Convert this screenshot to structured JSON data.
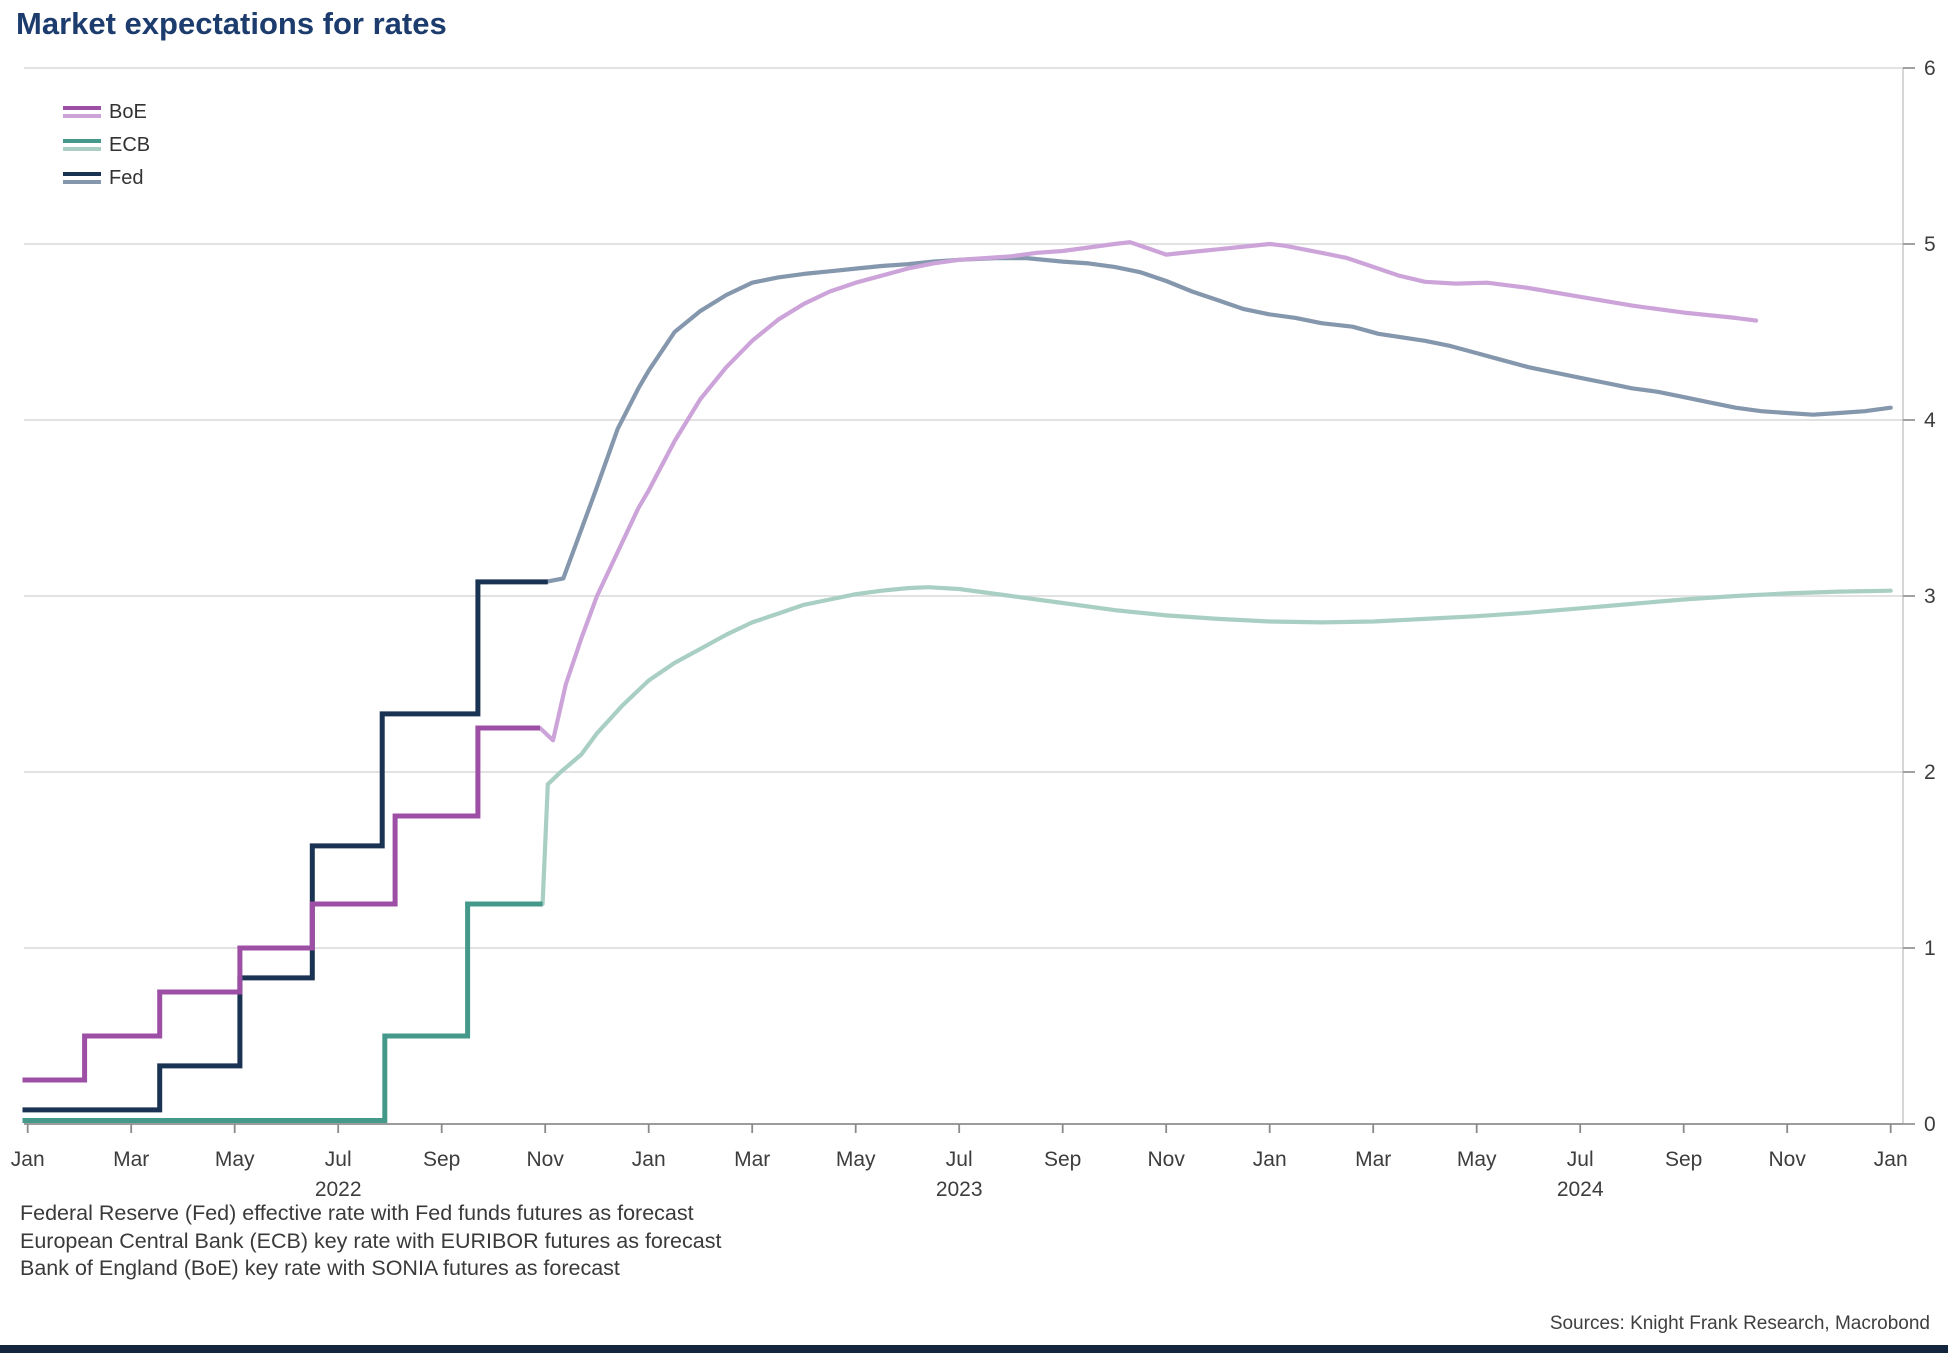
{
  "header": {
    "title": "Market expectations for rates"
  },
  "legend": {
    "items": [
      {
        "label": "BoE",
        "solid_color": "#9c4fa4",
        "forecast_color": "#cda4d9"
      },
      {
        "label": "ECB",
        "solid_color": "#45998a",
        "forecast_color": "#a9cfc4"
      },
      {
        "label": "Fed",
        "solid_color": "#1a3353",
        "forecast_color": "#8597ad"
      }
    ]
  },
  "footnotes": {
    "lines": [
      "Federal Reserve (Fed) effective rate with Fed funds futures as forecast",
      "European Central Bank (ECB) key rate with EURIBOR futures as forecast",
      "Bank of England (BoE) key rate with SONIA futures as forecast"
    ]
  },
  "sources": {
    "text": "Sources: Knight Frank Research, Macrobond"
  },
  "chart_data": {
    "type": "line",
    "title": "Market expectations for rates",
    "grid": true,
    "legend_position": "top-left",
    "x_axis": {
      "unit": "months since Jan 2022",
      "start_label": "Jan 2022",
      "end_label": "Jan 2025",
      "tick_months": [
        0,
        2,
        4,
        6,
        8,
        10,
        12,
        14,
        16,
        18,
        20,
        22,
        24,
        26,
        28,
        30,
        32,
        34,
        36
      ],
      "tick_labels": [
        "Jan",
        "Mar",
        "May",
        "Jul",
        "Sep",
        "Nov",
        "Jan",
        "Mar",
        "May",
        "Jul",
        "Sep",
        "Nov",
        "Jan",
        "Mar",
        "May",
        "Jul",
        "Sep",
        "Nov",
        "Jan"
      ],
      "year_labels": [
        {
          "month": 6,
          "label": "2022"
        },
        {
          "month": 18,
          "label": "2023"
        },
        {
          "month": 30,
          "label": "2024"
        }
      ]
    },
    "y_axis": {
      "min": 0,
      "max": 6,
      "ticks": [
        0,
        1,
        2,
        3,
        4,
        5,
        6
      ],
      "side": "right"
    },
    "series": [
      {
        "name": "ECB",
        "solid_color": "#45998a",
        "forecast_color": "#a9cfc4",
        "solid": [
          [
            -0.1,
            0.02
          ],
          [
            6.9,
            0.02
          ],
          [
            6.9,
            0.5
          ],
          [
            8.5,
            0.5
          ],
          [
            8.5,
            1.25
          ],
          [
            9.95,
            1.25
          ]
        ],
        "forecast": [
          [
            9.95,
            1.25
          ],
          [
            10.05,
            1.93
          ],
          [
            10.3,
            2.0
          ],
          [
            10.7,
            2.1
          ],
          [
            11,
            2.22
          ],
          [
            11.5,
            2.38
          ],
          [
            12,
            2.52
          ],
          [
            12.5,
            2.62
          ],
          [
            13,
            2.7
          ],
          [
            13.5,
            2.78
          ],
          [
            14,
            2.85
          ],
          [
            14.5,
            2.9
          ],
          [
            15,
            2.95
          ],
          [
            15.5,
            2.98
          ],
          [
            16,
            3.01
          ],
          [
            16.5,
            3.03
          ],
          [
            17,
            3.045
          ],
          [
            17.4,
            3.05
          ],
          [
            18,
            3.04
          ],
          [
            18.5,
            3.02
          ],
          [
            19,
            3.0
          ],
          [
            19.5,
            2.98
          ],
          [
            20,
            2.96
          ],
          [
            21,
            2.92
          ],
          [
            22,
            2.89
          ],
          [
            23,
            2.87
          ],
          [
            24,
            2.855
          ],
          [
            25,
            2.85
          ],
          [
            26,
            2.855
          ],
          [
            27,
            2.87
          ],
          [
            28,
            2.885
          ],
          [
            29,
            2.905
          ],
          [
            30,
            2.93
          ],
          [
            31,
            2.955
          ],
          [
            32,
            2.98
          ],
          [
            33,
            3.0
          ],
          [
            34,
            3.015
          ],
          [
            35,
            3.025
          ],
          [
            36,
            3.03
          ]
        ]
      },
      {
        "name": "Fed",
        "solid_color": "#1a3353",
        "forecast_color": "#8597ad",
        "solid": [
          [
            -0.1,
            0.08
          ],
          [
            2.55,
            0.08
          ],
          [
            2.55,
            0.33
          ],
          [
            4.1,
            0.33
          ],
          [
            4.1,
            0.83
          ],
          [
            5.5,
            0.83
          ],
          [
            5.5,
            1.58
          ],
          [
            6.85,
            1.58
          ],
          [
            6.85,
            2.33
          ],
          [
            8.7,
            2.33
          ],
          [
            8.7,
            3.08
          ],
          [
            10.05,
            3.08
          ]
        ],
        "forecast": [
          [
            10.0,
            3.08
          ],
          [
            10.35,
            3.1
          ],
          [
            10.6,
            3.3
          ],
          [
            11,
            3.62
          ],
          [
            11.4,
            3.95
          ],
          [
            11.8,
            4.18
          ],
          [
            12,
            4.28
          ],
          [
            12.5,
            4.5
          ],
          [
            13,
            4.62
          ],
          [
            13.5,
            4.71
          ],
          [
            14,
            4.78
          ],
          [
            14.5,
            4.81
          ],
          [
            15,
            4.83
          ],
          [
            15.5,
            4.845
          ],
          [
            16,
            4.86
          ],
          [
            16.5,
            4.875
          ],
          [
            17,
            4.885
          ],
          [
            17.5,
            4.9
          ],
          [
            18,
            4.91
          ],
          [
            18.7,
            4.92
          ],
          [
            19.3,
            4.92
          ],
          [
            20,
            4.9
          ],
          [
            20.5,
            4.89
          ],
          [
            21,
            4.87
          ],
          [
            21.5,
            4.84
          ],
          [
            22,
            4.79
          ],
          [
            22.5,
            4.73
          ],
          [
            23,
            4.68
          ],
          [
            23.5,
            4.63
          ],
          [
            24,
            4.6
          ],
          [
            24.5,
            4.58
          ],
          [
            25,
            4.55
          ],
          [
            25.6,
            4.53
          ],
          [
            26.1,
            4.49
          ],
          [
            27,
            4.45
          ],
          [
            27.5,
            4.42
          ],
          [
            28,
            4.38
          ],
          [
            28.5,
            4.34
          ],
          [
            29,
            4.3
          ],
          [
            29.5,
            4.27
          ],
          [
            30,
            4.24
          ],
          [
            30.5,
            4.21
          ],
          [
            31,
            4.18
          ],
          [
            31.5,
            4.16
          ],
          [
            32,
            4.13
          ],
          [
            32.5,
            4.1
          ],
          [
            33,
            4.07
          ],
          [
            33.5,
            4.05
          ],
          [
            34,
            4.04
          ],
          [
            34.5,
            4.03
          ],
          [
            35,
            4.04
          ],
          [
            35.5,
            4.05
          ],
          [
            36,
            4.07
          ]
        ]
      },
      {
        "name": "BoE",
        "solid_color": "#9c4fa4",
        "forecast_color": "#cda4d9",
        "solid": [
          [
            -0.1,
            0.25
          ],
          [
            1.1,
            0.25
          ],
          [
            1.1,
            0.5
          ],
          [
            2.55,
            0.5
          ],
          [
            2.55,
            0.75
          ],
          [
            4.1,
            0.75
          ],
          [
            4.1,
            1.0
          ],
          [
            5.5,
            1.0
          ],
          [
            5.5,
            1.25
          ],
          [
            7.1,
            1.25
          ],
          [
            7.1,
            1.75
          ],
          [
            8.7,
            1.75
          ],
          [
            8.7,
            2.25
          ],
          [
            9.9,
            2.25
          ]
        ],
        "forecast": [
          [
            9.9,
            2.25
          ],
          [
            10.15,
            2.18
          ],
          [
            10.4,
            2.5
          ],
          [
            10.7,
            2.76
          ],
          [
            11,
            3.0
          ],
          [
            11.4,
            3.25
          ],
          [
            11.8,
            3.5
          ],
          [
            12,
            3.6
          ],
          [
            12.5,
            3.88
          ],
          [
            13,
            4.12
          ],
          [
            13.5,
            4.3
          ],
          [
            14,
            4.45
          ],
          [
            14.5,
            4.57
          ],
          [
            15,
            4.66
          ],
          [
            15.5,
            4.73
          ],
          [
            16,
            4.78
          ],
          [
            16.5,
            4.82
          ],
          [
            17,
            4.86
          ],
          [
            17.5,
            4.89
          ],
          [
            18,
            4.91
          ],
          [
            18.5,
            4.92
          ],
          [
            19,
            4.93
          ],
          [
            19.5,
            4.95
          ],
          [
            20,
            4.96
          ],
          [
            20.5,
            4.98
          ],
          [
            21,
            5.0
          ],
          [
            21.3,
            5.01
          ],
          [
            22,
            4.94
          ],
          [
            22.5,
            4.955
          ],
          [
            23,
            4.97
          ],
          [
            23.5,
            4.985
          ],
          [
            24,
            5.0
          ],
          [
            24.3,
            4.99
          ],
          [
            25,
            4.95
          ],
          [
            25.5,
            4.92
          ],
          [
            26,
            4.87
          ],
          [
            26.5,
            4.82
          ],
          [
            27,
            4.785
          ],
          [
            27.6,
            4.775
          ],
          [
            28.2,
            4.78
          ],
          [
            29,
            4.75
          ],
          [
            30,
            4.7
          ],
          [
            31,
            4.65
          ],
          [
            32,
            4.61
          ],
          [
            33,
            4.58
          ],
          [
            33.4,
            4.565
          ]
        ]
      }
    ]
  }
}
